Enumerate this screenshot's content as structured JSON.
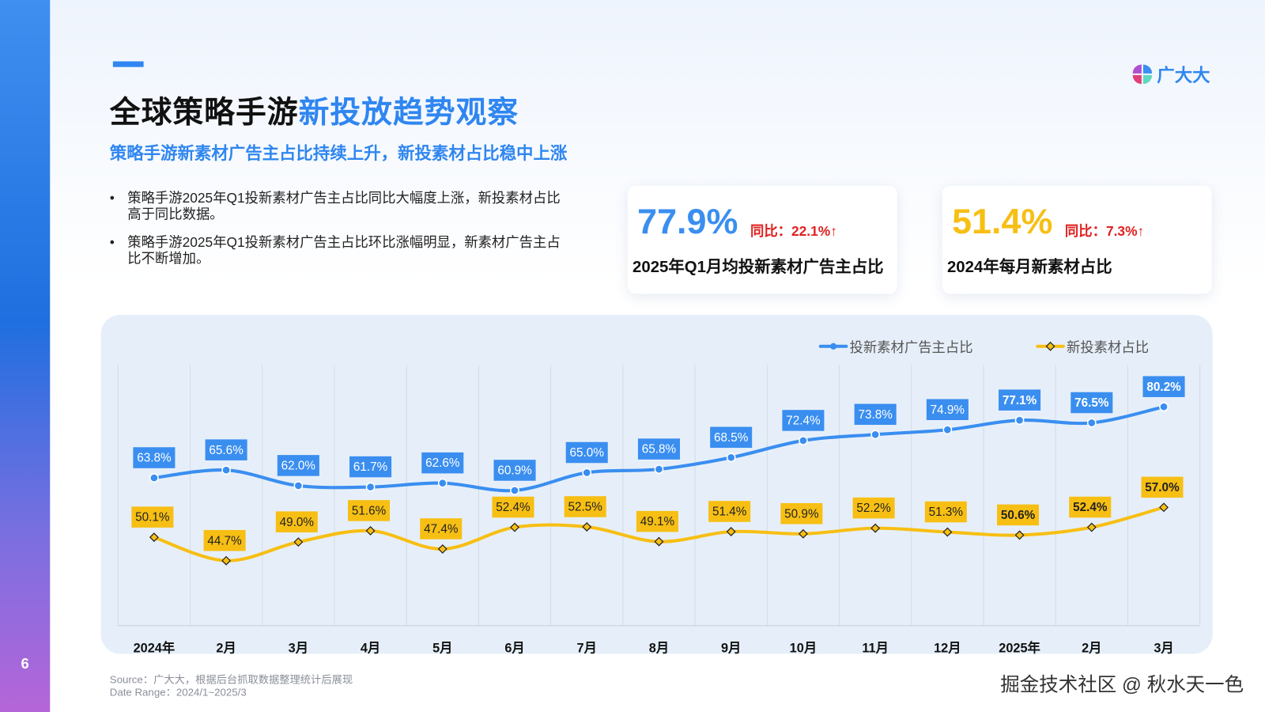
{
  "page_number": "6",
  "title": {
    "black": "全球策略手游",
    "blue": "新投放趋势观察"
  },
  "subtitle": "策略手游新素材广告主占比持续上升，新投素材占比稳中上涨",
  "bullets": [
    "策略手游2025年Q1投新素材广告主占比同比大幅度上涨，新投素材占比高于同比数据。",
    "策略手游2025年Q1投新素材广告主占比环比涨幅明显，新素材广告主占比不断增加。"
  ],
  "logo": {
    "text": "广大大"
  },
  "cards": [
    {
      "value": "77.9%",
      "yoy": "同比：22.1%↑",
      "label": "2025年Q1月均投新素材广告主占比",
      "color": "#3a8ef0"
    },
    {
      "value": "51.4%",
      "yoy": "同比：7.3%↑",
      "label": "2024年每月新素材占比",
      "color": "#f7bf14"
    }
  ],
  "source": "Source：广大大，根据后台抓取数据整理统计后展现",
  "date_range": "Date Range：2024/1~2025/3",
  "watermark": "掘金技术社区 @ 秋水天一色",
  "chart_data": {
    "type": "line",
    "categories": [
      "2024年",
      "2月",
      "3月",
      "4月",
      "5月",
      "6月",
      "7月",
      "8月",
      "9月",
      "10月",
      "11月",
      "12月",
      "2025年",
      "2月",
      "3月"
    ],
    "series": [
      {
        "name": "投新素材广告主占比",
        "color": "#3a8ef0",
        "values": [
          63.8,
          65.6,
          62.0,
          61.7,
          62.6,
          60.9,
          65.0,
          65.8,
          68.5,
          72.4,
          73.8,
          74.9,
          77.1,
          76.5,
          80.2
        ],
        "labels": [
          "63.8%",
          "65.6%",
          "62.0%",
          "61.7%",
          "62.6%",
          "60.9%",
          "65.0%",
          "65.8%",
          "68.5%",
          "72.4%",
          "73.8%",
          "74.9%",
          "77.1%",
          "76.5%",
          "80.2%"
        ]
      },
      {
        "name": "新投素材占比",
        "color": "#f7bf14",
        "values": [
          50.1,
          44.7,
          49.0,
          51.6,
          47.4,
          52.4,
          52.5,
          49.1,
          51.4,
          50.9,
          52.2,
          51.3,
          50.6,
          52.4,
          57.0
        ],
        "labels": [
          "50.1%",
          "44.7%",
          "49.0%",
          "51.6%",
          "47.4%",
          "52.4%",
          "52.5%",
          "49.1%",
          "51.4%",
          "50.9%",
          "52.2%",
          "51.3%",
          "50.6%",
          "52.4%",
          "57.0%"
        ]
      }
    ],
    "xlabel": "",
    "ylabel": "",
    "grid": "vertical",
    "legend": "top-right"
  }
}
